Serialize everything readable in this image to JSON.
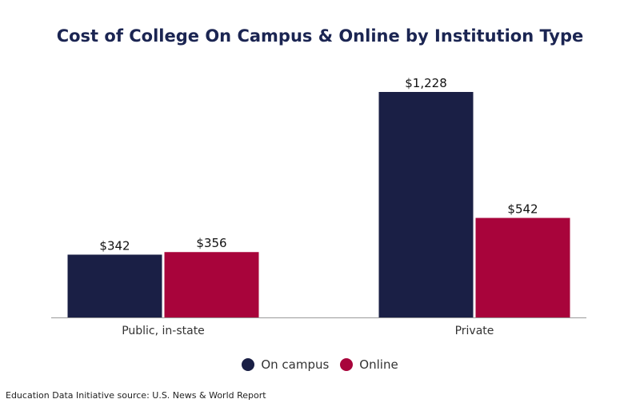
{
  "chart_data": {
    "type": "bar",
    "title": "Cost of College On Campus & Online by Institution Type",
    "categories": [
      "Public, in-state",
      "Private"
    ],
    "series": [
      {
        "name": "On campus",
        "values": [
          342,
          1228
        ],
        "labels": [
          "$342",
          "$1,228"
        ]
      },
      {
        "name": "Online",
        "values": [
          356,
          542
        ],
        "labels": [
          "$356",
          "$542"
        ]
      }
    ],
    "xlabel": "",
    "ylabel": "",
    "ylim": [
      0,
      1228
    ],
    "grid": false,
    "legend_position": "bottom"
  },
  "colors": {
    "title": "#1b2552",
    "on_campus": "#1a1f45",
    "online": "#a8043b",
    "axis": "#9a9a9a"
  },
  "source": "Education Data Initiative source: U.S. News & World Report"
}
